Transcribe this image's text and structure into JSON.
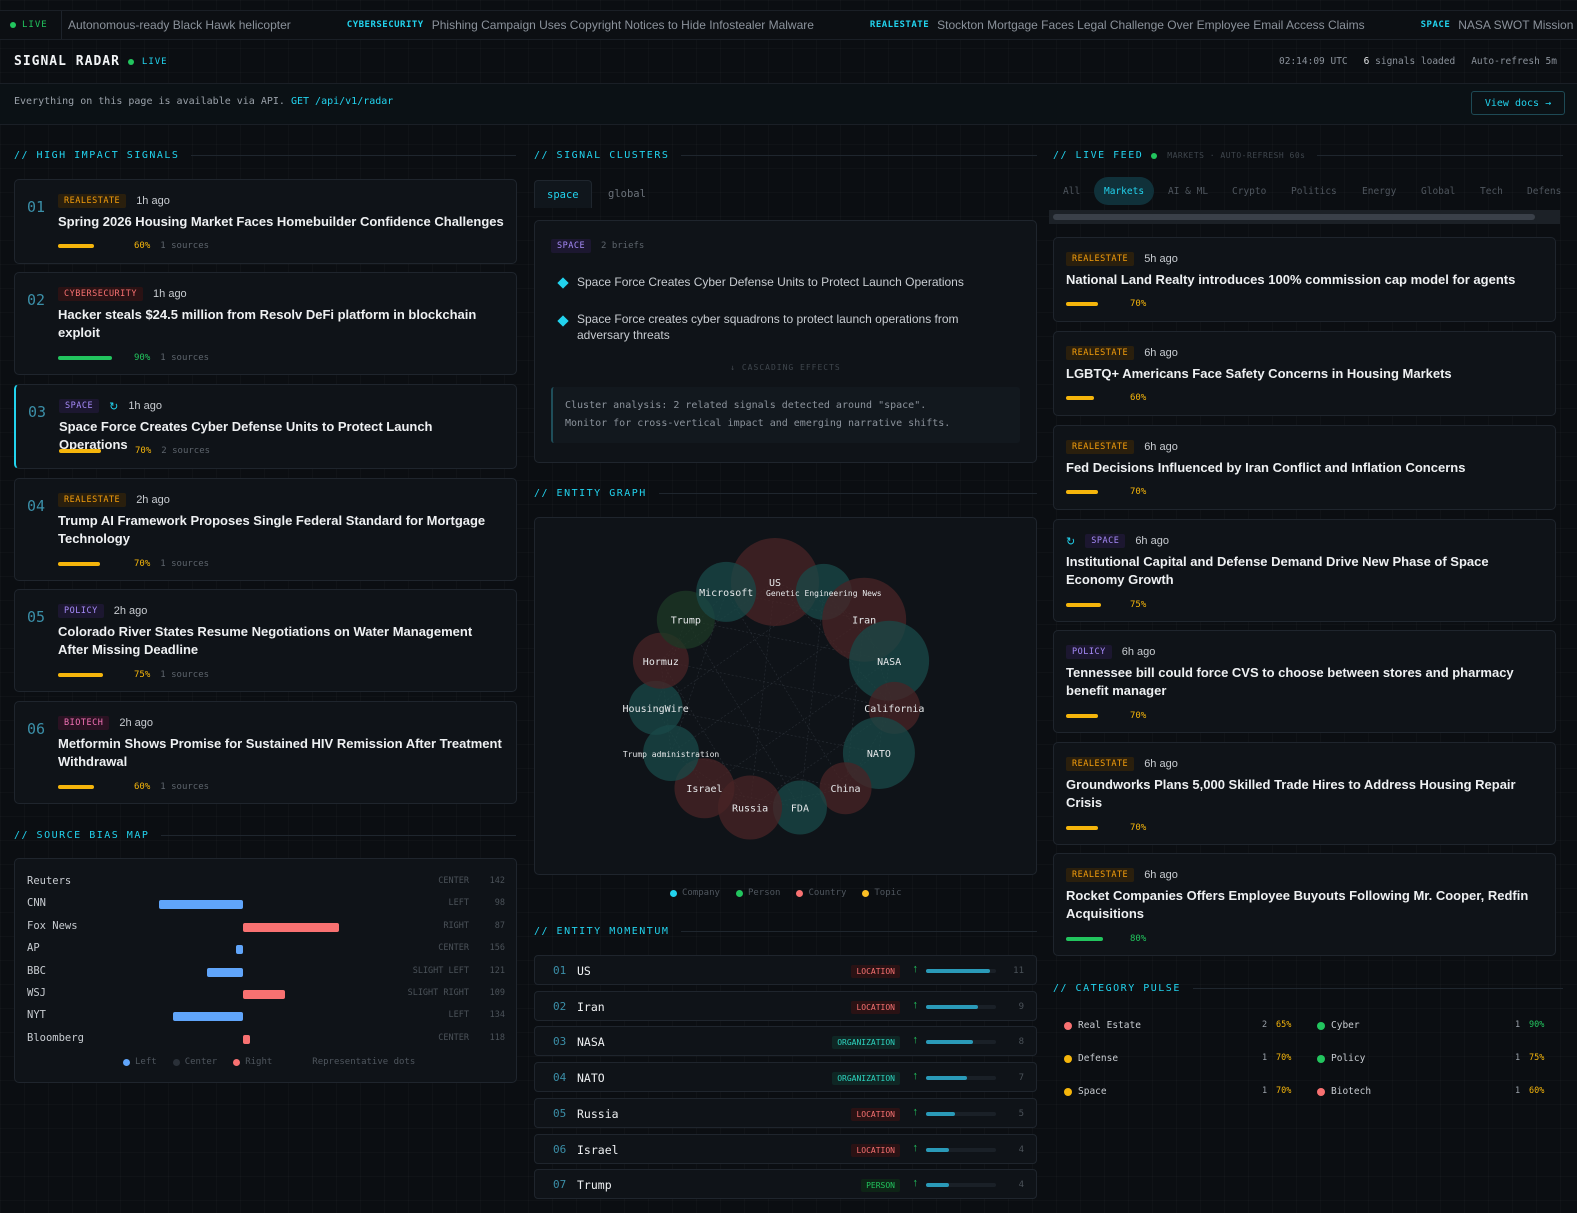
{
  "ticker": {
    "live_label": "LIVE",
    "items": [
      {
        "cat": "",
        "text": "Autonomous-ready Black Hawk helicopter"
      },
      {
        "cat": "CYBERSECURITY",
        "text": "Phishing Campaign Uses Copyright Notices to Hide Infostealer Malware"
      },
      {
        "cat": "REALESTATE",
        "text": "Stockton Mortgage Faces Legal Challenge Over Employee Email Access Claims"
      },
      {
        "cat": "SPACE",
        "text": "NASA SWOT Mission Reveals"
      }
    ]
  },
  "header": {
    "title": "SIGNAL RADAR",
    "live": "LIVE",
    "time": "02:14:09 UTC",
    "signals_count": "6",
    "signals_label": "signals loaded",
    "refresh": "Auto-refresh 5m"
  },
  "api": {
    "text": "Everything on this page is available via API.",
    "endpoint": "GET /api/v1/radar",
    "docs_label": "View docs →"
  },
  "sections": {
    "high_impact": "// HIGH IMPACT SIGNALS",
    "clusters": "// SIGNAL CLUSTERS",
    "live_feed": "// LIVE FEED",
    "source_bias": "// SOURCE BIAS MAP",
    "entity_graph": "// ENTITY GRAPH",
    "entity_momentum": "// ENTITY MOMENTUM",
    "category_pulse": "// CATEGORY PULSE"
  },
  "signals": [
    {
      "num": "01",
      "cat": "REALESTATE",
      "time": "1h ago",
      "title": "Spring 2026 Housing Market Faces Homebuilder Confidence Challenges",
      "pct": "60%",
      "score": 0.6,
      "sources": "1 sources",
      "color": "#f5b50b"
    },
    {
      "num": "02",
      "cat": "CYBERSECURITY",
      "time": "1h ago",
      "title": "Hacker steals $24.5 million from Resolv DeFi platform in blockchain exploit",
      "pct": "90%",
      "score": 0.9,
      "sources": "1 sources",
      "color": "#22c55e"
    },
    {
      "num": "03",
      "cat": "SPACE",
      "time": "1h ago",
      "title": "Space Force Creates Cyber Defense Units to Protect Launch Operations",
      "pct": "70%",
      "score": 0.7,
      "sources": "2 sources",
      "color": "#f5b50b"
    },
    {
      "num": "04",
      "cat": "REALESTATE",
      "time": "2h ago",
      "title": "Trump AI Framework Proposes Single Federal Standard for Mortgage Technology",
      "pct": "70%",
      "score": 0.7,
      "sources": "1 sources",
      "color": "#f5b50b"
    },
    {
      "num": "05",
      "cat": "POLICY",
      "time": "2h ago",
      "title": "Colorado River States Resume Negotiations on Water Management After Missing Deadline",
      "pct": "75%",
      "score": 0.75,
      "sources": "1 sources",
      "color": "#f5b50b"
    },
    {
      "num": "06",
      "cat": "BIOTECH",
      "time": "2h ago",
      "title": "Metformin Shows Promise for Sustained HIV Remission After Treatment Withdrawal",
      "pct": "60%",
      "score": 0.6,
      "sources": "1 sources",
      "color": "#f5b50b"
    }
  ],
  "bias": {
    "rows": [
      {
        "name": "Reuters",
        "lean": "CENTER",
        "count": "142",
        "value": 0
      },
      {
        "name": "CNN",
        "lean": "LEFT",
        "count": "98",
        "value": -0.7
      },
      {
        "name": "Fox News",
        "lean": "RIGHT",
        "count": "87",
        "value": 0.8
      },
      {
        "name": "AP",
        "lean": "CENTER",
        "count": "156",
        "value": -0.05
      },
      {
        "name": "BBC",
        "lean": "SLIGHT LEFT",
        "count": "121",
        "value": -0.3
      },
      {
        "name": "WSJ",
        "lean": "SLIGHT RIGHT",
        "count": "109",
        "value": 0.35
      },
      {
        "name": "NYT",
        "lean": "LEFT",
        "count": "134",
        "value": -0.58
      },
      {
        "name": "Bloomberg",
        "lean": "CENTER",
        "count": "118",
        "value": 0.05
      }
    ],
    "legend": {
      "left": "Left",
      "center": "Center",
      "right": "Right",
      "note": "Representative dots"
    }
  },
  "clusters": {
    "tabs": [
      "space",
      "global"
    ],
    "badge": "SPACE",
    "briefs_count": "2 briefs",
    "briefs": [
      "Space Force Creates Cyber Defense Units to Protect Launch Operations",
      "Space Force creates cyber squadrons to protect launch operations from adversary threats"
    ],
    "cascading": "↓ CASCADING EFFECTS",
    "analysis_line1": "Cluster analysis: 2 related signals detected around \"space\".",
    "analysis_line2": "Monitor for cross-vertical impact and emerging narrative shifts."
  },
  "graph": {
    "nodes": [
      {
        "label": "US",
        "type": "country"
      },
      {
        "label": "Genetic Engineering News",
        "type": "company"
      },
      {
        "label": "Iran",
        "type": "country"
      },
      {
        "label": "NASA",
        "type": "company"
      },
      {
        "label": "California",
        "type": "country"
      },
      {
        "label": "NATO",
        "type": "company"
      },
      {
        "label": "China",
        "type": "country"
      },
      {
        "label": "FDA",
        "type": "company"
      },
      {
        "label": "Russia",
        "type": "country"
      },
      {
        "label": "Israel",
        "type": "country"
      },
      {
        "label": "Trump administration",
        "type": "company"
      },
      {
        "label": "HousingWire",
        "type": "company"
      },
      {
        "label": "Hormuz",
        "type": "country"
      },
      {
        "label": "Trump",
        "type": "person"
      },
      {
        "label": "Microsoft",
        "type": "company"
      }
    ],
    "legend": [
      "Company",
      "Person",
      "Country",
      "Topic"
    ],
    "colors": {
      "company": "#22d3ee",
      "person": "#22c55e",
      "country": "#f87171",
      "topic": "#fbbf24"
    }
  },
  "momentum": [
    {
      "rank": "01",
      "name": "US",
      "type": "LOCATION",
      "score": "11",
      "value": 11
    },
    {
      "rank": "02",
      "name": "Iran",
      "type": "LOCATION",
      "score": "9",
      "value": 9
    },
    {
      "rank": "03",
      "name": "NASA",
      "type": "ORGANIZATION",
      "score": "8",
      "value": 8
    },
    {
      "rank": "04",
      "name": "NATO",
      "type": "ORGANIZATION",
      "score": "7",
      "value": 7
    },
    {
      "rank": "05",
      "name": "Russia",
      "type": "LOCATION",
      "score": "5",
      "value": 5
    },
    {
      "rank": "06",
      "name": "Israel",
      "type": "LOCATION",
      "score": "4",
      "value": 4
    },
    {
      "rank": "07",
      "name": "Trump",
      "type": "PERSON",
      "score": "4",
      "value": 4
    }
  ],
  "feed": {
    "status": "MARKETS · AUTO-REFRESH 60s",
    "tabs": [
      "All",
      "Markets",
      "AI & ML",
      "Crypto",
      "Politics",
      "Energy",
      "Global",
      "Tech",
      "Defens"
    ],
    "active_tab": "Markets",
    "items": [
      {
        "cat": "REALESTATE",
        "time": "5h ago",
        "title": "National Land Realty introduces 100% commission cap model for agents",
        "pct": "70%",
        "score": 0.7,
        "color": "#f5b50b"
      },
      {
        "cat": "REALESTATE",
        "time": "6h ago",
        "title": "LGBTQ+ Americans Face Safety Concerns in Housing Markets",
        "pct": "60%",
        "score": 0.6,
        "color": "#f5b50b"
      },
      {
        "cat": "REALESTATE",
        "time": "6h ago",
        "title": "Fed Decisions Influenced by Iran Conflict and Inflation Concerns",
        "pct": "70%",
        "score": 0.7,
        "color": "#f5b50b"
      },
      {
        "cat": "SPACE",
        "time": "6h ago",
        "title": "Institutional Capital and Defense Demand Drive New Phase of Space Economy Growth",
        "pct": "75%",
        "score": 0.75,
        "color": "#f5b50b"
      },
      {
        "cat": "POLICY",
        "time": "6h ago",
        "title": "Tennessee bill could force CVS to choose between stores and pharmacy benefit manager",
        "pct": "70%",
        "score": 0.7,
        "color": "#f5b50b"
      },
      {
        "cat": "REALESTATE",
        "time": "6h ago",
        "title": "Groundworks Plans 5,000 Skilled Trade Hires to Address Housing Repair Crisis",
        "pct": "70%",
        "score": 0.7,
        "color": "#f5b50b"
      },
      {
        "cat": "REALESTATE",
        "time": "6h ago",
        "title": "Rocket Companies Offers Employee Buyouts Following Mr. Cooper, Redfin Acquisitions",
        "pct": "80%",
        "score": 0.8,
        "color": "#22c55e"
      }
    ]
  },
  "pulse": [
    {
      "name": "Real Estate",
      "count": "2",
      "pct": "65%",
      "dot": "#f87171",
      "pctColor": "#f5b50b"
    },
    {
      "name": "Cyber",
      "count": "1",
      "pct": "90%",
      "dot": "#22c55e",
      "pctColor": "#22c55e"
    },
    {
      "name": "Defense",
      "count": "1",
      "pct": "70%",
      "dot": "#f5b50b",
      "pctColor": "#f5b50b"
    },
    {
      "name": "Policy",
      "count": "1",
      "pct": "75%",
      "dot": "#22c55e",
      "pctColor": "#f5b50b"
    },
    {
      "name": "Space",
      "count": "1",
      "pct": "70%",
      "dot": "#f5b50b",
      "pctColor": "#f5b50b"
    },
    {
      "name": "Biotech",
      "count": "1",
      "pct": "60%",
      "dot": "#f87171",
      "pctColor": "#f5b50b"
    }
  ]
}
